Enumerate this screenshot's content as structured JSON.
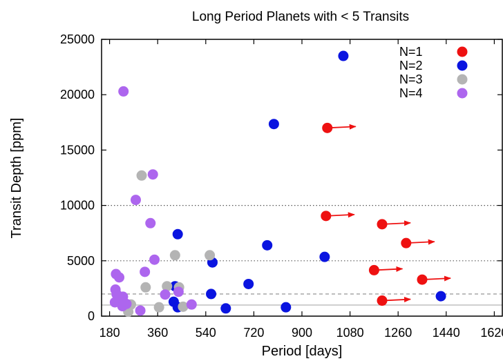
{
  "chart_data": {
    "type": "scatter",
    "title": "Long Period Planets with < 5 Transits",
    "xlabel": "Period [days]",
    "ylabel": "Transit Depth [ppm]",
    "xlim": [
      150,
      1650
    ],
    "ylim": [
      0,
      25000
    ],
    "xticks": [
      180,
      360,
      540,
      720,
      900,
      1080,
      1260,
      1440,
      1620
    ],
    "yticks": [
      0,
      5000,
      10000,
      15000,
      20000,
      25000
    ],
    "grid": false,
    "legend_position": "top-right",
    "reference_lines": [
      {
        "y": 10000,
        "style": "dotted",
        "color": "#555555"
      },
      {
        "y": 5000,
        "style": "dotted",
        "color": "#555555"
      },
      {
        "y": 2000,
        "style": "dashed",
        "color": "#888888"
      },
      {
        "y": 1000,
        "style": "solid",
        "color": "#aaaaaa"
      }
    ],
    "series": [
      {
        "name": "N=1",
        "color": "#ee1111",
        "lower_limit_arrows": true,
        "points": [
          {
            "x": 995,
            "y": 17000
          },
          {
            "x": 990,
            "y": 9050
          },
          {
            "x": 1200,
            "y": 8300
          },
          {
            "x": 1290,
            "y": 6600
          },
          {
            "x": 1170,
            "y": 4150
          },
          {
            "x": 1350,
            "y": 3300
          },
          {
            "x": 1200,
            "y": 1400
          }
        ]
      },
      {
        "name": "N=2",
        "color": "#0a14e0",
        "lower_limit_arrows": false,
        "points": [
          {
            "x": 1055,
            "y": 23500
          },
          {
            "x": 795,
            "y": 17350
          },
          {
            "x": 435,
            "y": 7400
          },
          {
            "x": 770,
            "y": 6400
          },
          {
            "x": 985,
            "y": 5350
          },
          {
            "x": 565,
            "y": 4850
          },
          {
            "x": 700,
            "y": 2900
          },
          {
            "x": 425,
            "y": 2700
          },
          {
            "x": 560,
            "y": 2000
          },
          {
            "x": 1420,
            "y": 1800
          },
          {
            "x": 420,
            "y": 1300
          },
          {
            "x": 435,
            "y": 800
          },
          {
            "x": 840,
            "y": 800
          },
          {
            "x": 615,
            "y": 700
          }
        ]
      },
      {
        "name": "N=3",
        "color": "#b4b4b4",
        "lower_limit_arrows": false,
        "points": [
          {
            "x": 300,
            "y": 12700
          },
          {
            "x": 425,
            "y": 5500
          },
          {
            "x": 555,
            "y": 5500
          },
          {
            "x": 395,
            "y": 2700
          },
          {
            "x": 440,
            "y": 2600
          },
          {
            "x": 315,
            "y": 2600
          },
          {
            "x": 260,
            "y": 1050
          },
          {
            "x": 365,
            "y": 800
          },
          {
            "x": 455,
            "y": 850
          },
          {
            "x": 250,
            "y": 400
          }
        ]
      },
      {
        "name": "N=4",
        "color": "#ad66ee",
        "lower_limit_arrows": false,
        "points": [
          {
            "x": 232,
            "y": 20300
          },
          {
            "x": 342,
            "y": 12800
          },
          {
            "x": 278,
            "y": 10500
          },
          {
            "x": 333,
            "y": 8400
          },
          {
            "x": 348,
            "y": 5100
          },
          {
            "x": 312,
            "y": 4000
          },
          {
            "x": 204,
            "y": 3800
          },
          {
            "x": 216,
            "y": 3500
          },
          {
            "x": 202,
            "y": 2400
          },
          {
            "x": 206,
            "y": 2000
          },
          {
            "x": 230,
            "y": 1750
          },
          {
            "x": 388,
            "y": 1950
          },
          {
            "x": 438,
            "y": 2200
          },
          {
            "x": 212,
            "y": 1650
          },
          {
            "x": 222,
            "y": 1200
          },
          {
            "x": 200,
            "y": 1250
          },
          {
            "x": 243,
            "y": 1100
          },
          {
            "x": 228,
            "y": 900
          },
          {
            "x": 487,
            "y": 1050
          },
          {
            "x": 295,
            "y": 500
          }
        ]
      }
    ]
  }
}
